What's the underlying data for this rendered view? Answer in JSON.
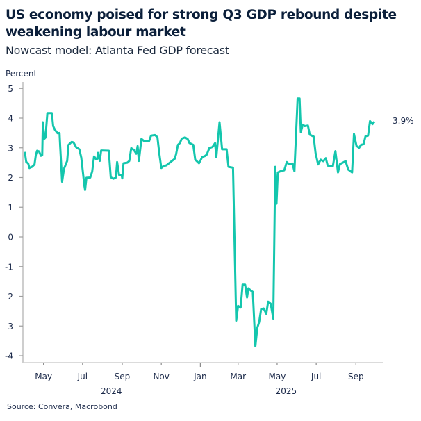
{
  "chart_data": {
    "type": "line",
    "title": "US economy poised for strong Q3 GDP rebound despite weakening labour market",
    "subtitle": "Nowcast model: Atlanta Fed GDP forecast",
    "ylabel": "Percent",
    "xlabel": "",
    "ylim": [
      -4,
      5
    ],
    "yticks": [
      "5",
      "4",
      "3",
      "2",
      "1",
      "0",
      "-1",
      "-2",
      "-3",
      "-4"
    ],
    "xticks": [
      {
        "date": "2024-05-01",
        "label": "May"
      },
      {
        "date": "2024-07-01",
        "label": "Jul"
      },
      {
        "date": "2024-09-01",
        "label": "Sep"
      },
      {
        "date": "2024-11-01",
        "label": "Nov"
      },
      {
        "date": "2025-01-01",
        "label": "Jan"
      },
      {
        "date": "2025-03-01",
        "label": "Mar"
      },
      {
        "date": "2025-05-01",
        "label": "May"
      },
      {
        "date": "2025-07-01",
        "label": "Jul"
      },
      {
        "date": "2025-09-01",
        "label": "Sep"
      }
    ],
    "year_labels": [
      {
        "label": "2024",
        "date": "2024-08-15"
      },
      {
        "label": "2025",
        "date": "2025-05-15"
      }
    ],
    "xlim": [
      "2024-04-01",
      "2025-09-30"
    ],
    "grid": false,
    "line_color": "#14c6ad",
    "end_label": "3.9%",
    "source": "Source: Convera, Macrobond",
    "series": [
      {
        "x": [
          "2024-04-01",
          "2024-04-02",
          "2024-04-04",
          "2024-04-07",
          "2024-04-09",
          "2024-04-13",
          "2024-04-17",
          "2024-04-19",
          "2024-04-21",
          "2024-04-24",
          "2024-04-27",
          "2024-04-29",
          "2024-04-30",
          "2024-05-02",
          "2024-05-04",
          "2024-05-07",
          "2024-05-14",
          "2024-05-16",
          "2024-05-19",
          "2024-05-23",
          "2024-05-26",
          "2024-05-27",
          "2024-05-30",
          "2024-06-02",
          "2024-06-07",
          "2024-06-09",
          "2024-06-14",
          "2024-06-17",
          "2024-06-21",
          "2024-06-26",
          "2024-06-29",
          "2024-07-04",
          "2024-07-05",
          "2024-07-07",
          "2024-07-13",
          "2024-07-16",
          "2024-07-19",
          "2024-07-22",
          "2024-07-24",
          "2024-07-25",
          "2024-07-28",
          "2024-07-30",
          "2024-08-11",
          "2024-08-14",
          "2024-08-18",
          "2024-08-22",
          "2024-08-24",
          "2024-08-27",
          "2024-08-31",
          "2024-09-01",
          "2024-09-03",
          "2024-09-09",
          "2024-09-12",
          "2024-09-15",
          "2024-09-19",
          "2024-09-23",
          "2024-09-25",
          "2024-09-27",
          "2024-10-01",
          "2024-10-05",
          "2024-10-13",
          "2024-10-16",
          "2024-10-22",
          "2024-10-26",
          "2024-10-29",
          "2024-11-01",
          "2024-11-05",
          "2024-11-09",
          "2024-11-16",
          "2024-11-22",
          "2024-11-24",
          "2024-11-27",
          "2024-11-30",
          "2024-12-03",
          "2024-12-08",
          "2024-12-12",
          "2024-12-15",
          "2024-12-21",
          "2024-12-24",
          "2024-12-30",
          "2025-01-04",
          "2025-01-08",
          "2025-01-11",
          "2025-01-15",
          "2025-01-20",
          "2025-01-24",
          "2025-01-26",
          "2025-01-31",
          "2025-02-04",
          "2025-02-11",
          "2025-02-14",
          "2025-02-21",
          "2025-02-26",
          "2025-03-01",
          "2025-03-05",
          "2025-03-08",
          "2025-03-12",
          "2025-03-15",
          "2025-03-17",
          "2025-03-21",
          "2025-03-24",
          "2025-03-28",
          "2025-03-31",
          "2025-04-03",
          "2025-04-06",
          "2025-04-10",
          "2025-04-14",
          "2025-04-17",
          "2025-04-21",
          "2025-04-25",
          "2025-04-28",
          "2025-04-30",
          "2025-05-02",
          "2025-05-07",
          "2025-05-12",
          "2025-05-16",
          "2025-05-19",
          "2025-05-25",
          "2025-05-28",
          "2025-06-02",
          "2025-06-05",
          "2025-06-07",
          "2025-06-10",
          "2025-06-13",
          "2025-06-18",
          "2025-06-21",
          "2025-06-27",
          "2025-06-30",
          "2025-07-04",
          "2025-07-08",
          "2025-07-12",
          "2025-07-16",
          "2025-07-19",
          "2025-07-27",
          "2025-07-31",
          "2025-08-04",
          "2025-08-07",
          "2025-08-16",
          "2025-08-20",
          "2025-08-26",
          "2025-08-29",
          "2025-09-02",
          "2025-09-06",
          "2025-09-09",
          "2025-09-13",
          "2025-09-16",
          "2025-09-20",
          "2025-09-23",
          "2025-09-27",
          "2025-09-30"
        ],
        "y": [
          2.85,
          2.83,
          2.52,
          2.48,
          2.32,
          2.36,
          2.44,
          2.76,
          2.9,
          2.88,
          2.73,
          2.75,
          3.86,
          3.3,
          3.34,
          4.17,
          4.17,
          3.73,
          3.6,
          3.49,
          3.5,
          3.06,
          1.86,
          2.29,
          2.56,
          3.1,
          3.2,
          3.18,
          3.02,
          2.95,
          2.67,
          1.7,
          1.58,
          1.99,
          2.0,
          2.2,
          2.71,
          2.62,
          2.63,
          2.83,
          2.56,
          2.91,
          2.9,
          2.01,
          1.96,
          2.0,
          2.52,
          2.09,
          2.09,
          1.97,
          2.48,
          2.5,
          2.56,
          2.99,
          2.93,
          2.8,
          3.06,
          2.56,
          3.3,
          3.23,
          3.23,
          3.41,
          3.43,
          3.36,
          2.79,
          2.32,
          2.39,
          2.41,
          2.53,
          2.63,
          2.78,
          3.1,
          3.16,
          3.31,
          3.35,
          3.3,
          3.16,
          3.1,
          2.6,
          2.48,
          2.69,
          2.72,
          2.77,
          2.99,
          3.03,
          3.16,
          2.69,
          3.86,
          2.95,
          2.95,
          2.36,
          2.33,
          -2.82,
          -2.32,
          -2.38,
          -1.61,
          -1.61,
          -2.04,
          -1.73,
          -1.81,
          -1.85,
          -3.68,
          -3.06,
          -2.86,
          -2.43,
          -2.41,
          -2.59,
          -2.18,
          -2.25,
          -2.75,
          2.36,
          1.12,
          2.17,
          2.22,
          2.24,
          2.52,
          2.46,
          2.47,
          2.21,
          4.66,
          4.66,
          3.53,
          3.78,
          3.73,
          3.75,
          3.44,
          3.38,
          2.83,
          2.44,
          2.6,
          2.55,
          2.65,
          2.4,
          2.38,
          2.89,
          2.17,
          2.45,
          2.55,
          2.27,
          2.17,
          3.47,
          3.06,
          3.0,
          3.1,
          3.12,
          3.39,
          3.41,
          3.9,
          3.8,
          3.88
        ]
      }
    ]
  }
}
